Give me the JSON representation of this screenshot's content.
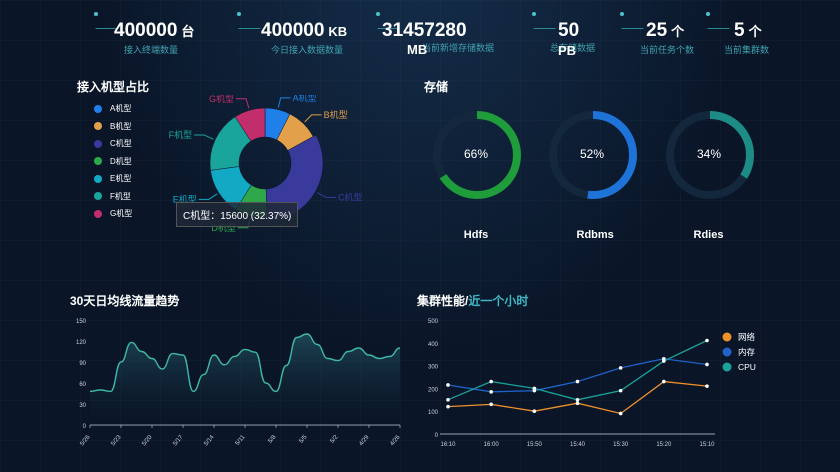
{
  "kpis": [
    {
      "value": "400000",
      "unit": "台",
      "label": "接入终端数量"
    },
    {
      "value": "400000",
      "unit": "KB",
      "label": "今日接入数据数量"
    },
    {
      "value": "31457280",
      "unit": "MB",
      "label": "当前新增存储数据"
    },
    {
      "value": "50",
      "unit": "PB",
      "label": "总存储数据"
    },
    {
      "value": "25",
      "unit": "个",
      "label": "当前任务个数"
    },
    {
      "value": "5",
      "unit": "个",
      "label": "当前集群数"
    }
  ],
  "pie": {
    "title": "接入机型占比",
    "tooltip": "C机型：15600 (32.37%)",
    "items": [
      {
        "name": "A机型",
        "value": 7.5,
        "color": "#1e80e8"
      },
      {
        "name": "B机型",
        "value": 9.5,
        "color": "#e3a04a"
      },
      {
        "name": "C机型",
        "value": 32.37,
        "color": "#3a3a9c"
      },
      {
        "name": "D机型",
        "value": 9.5,
        "color": "#2ea84b"
      },
      {
        "name": "E机型",
        "value": 14,
        "color": "#11a9c4"
      },
      {
        "name": "F机型",
        "value": 18,
        "color": "#1aa59c"
      },
      {
        "name": "G机型",
        "value": 9.13,
        "color": "#c22d6c"
      }
    ]
  },
  "storage": {
    "title": "存储",
    "gauges": [
      {
        "name": "Hdfs",
        "percent": 66,
        "percent_text": "66%",
        "color": "#1e9d3a"
      },
      {
        "name": "Rdbms",
        "percent": 52,
        "percent_text": "52%",
        "color": "#1d73d8"
      },
      {
        "name": "Rdies",
        "percent": 34,
        "percent_text": "34%",
        "color": "#1e8c86"
      }
    ]
  },
  "trend": {
    "title": "30天日均线流量趋势",
    "y_ticks": [
      "150",
      "120",
      "90",
      "60",
      "30",
      "0"
    ],
    "x_ticks": [
      "5/26",
      "5/23",
      "5/20",
      "5/17",
      "5/14",
      "5/11",
      "5/8",
      "5/5",
      "5/2",
      "4/29",
      "4/26"
    ],
    "color": "#3fb8a8"
  },
  "cluster": {
    "title": "集群性能/",
    "title_accent": "近一个小时",
    "y_ticks": [
      "500",
      "400",
      "300",
      "200",
      "100",
      "0"
    ],
    "x_ticks": [
      "16:10",
      "16:00",
      "15:50",
      "15:40",
      "15:30",
      "15:20",
      "15:10"
    ],
    "legend": [
      {
        "name": "网络",
        "color": "#f0902a"
      },
      {
        "name": "内存",
        "color": "#1f62c8"
      },
      {
        "name": "CPU",
        "color": "#1aa39a"
      }
    ]
  },
  "chart_data": [
    {
      "type": "pie",
      "title": "接入机型占比",
      "categories": [
        "A机型",
        "B机型",
        "C机型",
        "D机型",
        "E机型",
        "F机型",
        "G机型"
      ],
      "values": [
        7.5,
        9.5,
        32.37,
        9.5,
        14,
        18,
        9.13
      ],
      "highlight": {
        "name": "C机型",
        "value": 15600,
        "percent": 32.37
      }
    },
    {
      "type": "pie",
      "title": "存储",
      "categories": [
        "Hdfs",
        "Rdbms",
        "Rdies"
      ],
      "values": [
        66,
        52,
        34
      ]
    },
    {
      "type": "area",
      "title": "30天日均线流量趋势",
      "x": [
        "5/26",
        "5/25",
        "5/24",
        "5/23",
        "5/22",
        "5/21",
        "5/20",
        "5/19",
        "5/18",
        "5/17",
        "5/16",
        "5/15",
        "5/14",
        "5/13",
        "5/12",
        "5/11",
        "5/10",
        "5/9",
        "5/8",
        "5/7",
        "5/6",
        "5/5",
        "5/4",
        "5/3",
        "5/2",
        "5/1",
        "4/30",
        "4/29",
        "4/28",
        "4/27",
        "4/26"
      ],
      "values": [
        48,
        50,
        48,
        90,
        118,
        105,
        95,
        80,
        102,
        100,
        48,
        72,
        100,
        86,
        98,
        108,
        104,
        60,
        48,
        85,
        125,
        130,
        115,
        95,
        92,
        105,
        110,
        100,
        95,
        98,
        110
      ],
      "ylim": [
        0,
        150
      ]
    },
    {
      "type": "line",
      "title": "集群性能/近一个小时",
      "categories": [
        "16:10",
        "16:00",
        "15:50",
        "15:40",
        "15:30",
        "15:20",
        "15:10"
      ],
      "ylim": [
        0,
        500
      ],
      "series": [
        {
          "name": "网络",
          "values": [
            120,
            130,
            100,
            135,
            90,
            230,
            210
          ]
        },
        {
          "name": "内存",
          "values": [
            215,
            185,
            190,
            230,
            290,
            330,
            305
          ]
        },
        {
          "name": "CPU",
          "values": [
            150,
            230,
            200,
            150,
            190,
            320,
            410
          ]
        }
      ]
    }
  ]
}
